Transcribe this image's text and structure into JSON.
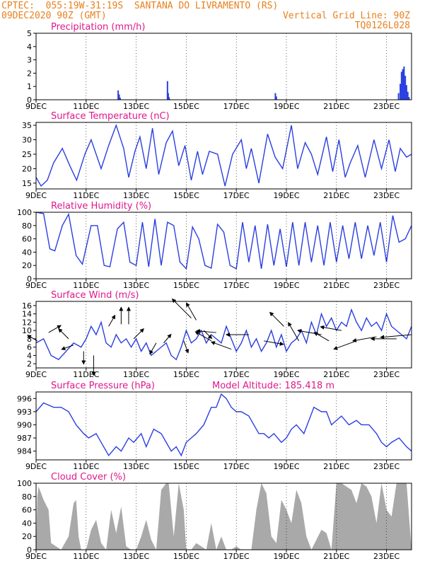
{
  "header": {
    "line1_left": "CPTEC:  055:19W-31:19S  SANTANA DO LIVRAMENTO (RS)",
    "line2_left": "09DEC2020 90Z (GMT)",
    "line2_right": "Vertical Grid Line: 90Z",
    "line3_right": "TQ0126L028"
  },
  "colors": {
    "header": "#e8801e",
    "title": "#e0188c",
    "line": "#2a3fe0",
    "cloud": "#a9a9a9",
    "axis": "#000000",
    "grid": "#000000"
  },
  "x_axis": {
    "tick_labels": [
      "9DEC",
      "11DEC",
      "13DEC",
      "15DEC",
      "17DEC",
      "19DEC",
      "21DEC",
      "23DEC"
    ],
    "tick_days": [
      9,
      11,
      13,
      15,
      17,
      19,
      21,
      23
    ],
    "range_days": [
      9.0,
      24.0
    ]
  },
  "chart_data": [
    {
      "type": "bar",
      "title": "Precipitation (mm/h)",
      "ylim": [
        0,
        5
      ],
      "yticks": [
        0,
        1,
        2,
        3,
        4,
        5
      ],
      "x_days": [
        12.28,
        12.32,
        12.36,
        14.25,
        14.28,
        14.31,
        14.34,
        18.56,
        18.6,
        23.48,
        23.55,
        23.6,
        23.65,
        23.7,
        23.75,
        23.8,
        23.85,
        23.9
      ],
      "values": [
        0.7,
        0.4,
        0.15,
        1.4,
        0.5,
        0.2,
        0.05,
        0.5,
        0.25,
        0.5,
        1.2,
        2.1,
        2.3,
        2.5,
        1.8,
        1.1,
        0.6,
        0.2
      ]
    },
    {
      "type": "line",
      "title": "Surface Temperature (nC)",
      "ylim": [
        13,
        36
      ],
      "yticks": [
        15,
        20,
        25,
        30,
        35
      ],
      "x_days": [
        9,
        9.2,
        9.45,
        9.7,
        10.05,
        10.35,
        10.62,
        10.95,
        11.2,
        11.6,
        11.9,
        12.2,
        12.5,
        12.7,
        12.95,
        13.15,
        13.4,
        13.65,
        13.9,
        14.2,
        14.45,
        14.7,
        14.95,
        15.2,
        15.45,
        15.65,
        15.92,
        16.25,
        16.55,
        16.85,
        17.2,
        17.4,
        17.6,
        17.9,
        18.25,
        18.55,
        18.85,
        19.2,
        19.45,
        19.75,
        20.0,
        20.25,
        20.6,
        20.85,
        21.1,
        21.35,
        21.55,
        21.85,
        22.15,
        22.5,
        22.8,
        23.1,
        23.35,
        23.55,
        23.8,
        24.0
      ],
      "values": [
        17,
        14,
        16,
        22,
        27,
        21,
        16,
        25,
        30,
        20,
        28,
        35,
        27,
        17,
        26,
        31,
        20,
        34,
        18,
        29,
        33,
        21,
        28,
        16,
        26,
        18,
        26,
        25,
        14,
        25,
        30,
        20,
        27,
        15,
        32,
        24,
        20,
        35,
        20,
        29,
        25,
        18,
        31,
        19,
        30,
        17,
        22,
        28,
        17,
        30,
        20,
        30,
        19,
        27,
        24,
        25
      ]
    },
    {
      "type": "line",
      "title": "Relative Humidity (%)",
      "ylim": [
        0,
        100
      ],
      "yticks": [
        0,
        20,
        40,
        60,
        80,
        100
      ],
      "x_days": [
        9,
        9.3,
        9.55,
        9.75,
        10.05,
        10.3,
        10.6,
        10.85,
        11.2,
        11.45,
        11.72,
        11.95,
        12.25,
        12.5,
        12.75,
        13.0,
        13.25,
        13.5,
        13.75,
        14.0,
        14.25,
        14.5,
        14.75,
        15.0,
        15.25,
        15.5,
        15.75,
        16.0,
        16.25,
        16.5,
        16.75,
        17.0,
        17.25,
        17.5,
        17.75,
        18.0,
        18.25,
        18.5,
        18.75,
        19.0,
        19.25,
        19.5,
        19.75,
        20.0,
        20.25,
        20.5,
        20.75,
        21.0,
        21.25,
        21.5,
        21.75,
        22.0,
        22.25,
        22.5,
        22.75,
        23.0,
        23.25,
        23.5,
        23.75,
        24.0
      ],
      "values": [
        100,
        98,
        45,
        42,
        80,
        97,
        35,
        22,
        80,
        80,
        20,
        18,
        75,
        85,
        25,
        20,
        85,
        18,
        90,
        20,
        85,
        80,
        25,
        15,
        78,
        60,
        20,
        16,
        82,
        70,
        20,
        15,
        85,
        25,
        80,
        15,
        82,
        20,
        75,
        18,
        85,
        20,
        85,
        25,
        80,
        20,
        85,
        25,
        80,
        30,
        85,
        30,
        80,
        35,
        85,
        25,
        95,
        55,
        60,
        80
      ]
    },
    {
      "type": "line",
      "title": "Surface Wind (m/s)",
      "ylim": [
        1,
        17
      ],
      "yticks": [
        2,
        4,
        6,
        8,
        10,
        12,
        14,
        16
      ],
      "x_days": [
        9,
        9.3,
        9.6,
        9.9,
        10.2,
        10.5,
        10.8,
        11.0,
        11.2,
        11.4,
        11.6,
        11.8,
        12.0,
        12.2,
        12.4,
        12.6,
        12.8,
        13.0,
        13.2,
        13.4,
        13.6,
        13.8,
        14.0,
        14.2,
        14.4,
        14.6,
        14.8,
        15.0,
        15.2,
        15.4,
        15.6,
        15.8,
        16.0,
        16.2,
        16.4,
        16.6,
        16.8,
        17.0,
        17.2,
        17.4,
        17.6,
        17.8,
        18.0,
        18.2,
        18.4,
        18.6,
        18.8,
        19.0,
        19.2,
        19.4,
        19.6,
        19.8,
        20.0,
        20.2,
        20.4,
        20.6,
        20.8,
        21.0,
        21.2,
        21.4,
        21.6,
        21.8,
        22.0,
        22.2,
        22.4,
        22.6,
        22.8,
        23.0,
        23.2,
        23.4,
        23.6,
        23.8,
        24.0
      ],
      "values": [
        7,
        8,
        4,
        3,
        5,
        7,
        6,
        8,
        11,
        9,
        12,
        7,
        6,
        9,
        7,
        8,
        6,
        8,
        5,
        7,
        4,
        5,
        6,
        7,
        4,
        3,
        6,
        10,
        7,
        8,
        10,
        7,
        9,
        8,
        7,
        11,
        8,
        5,
        7,
        10,
        6,
        8,
        5,
        7,
        10,
        6,
        9,
        5,
        7,
        8,
        10,
        7,
        12,
        9,
        14,
        11,
        13,
        10,
        12,
        11,
        15,
        12,
        10,
        13,
        11,
        12,
        10,
        14,
        11,
        10,
        9,
        8,
        11
      ]
    },
    {
      "type": "line",
      "title": "Surface Pressure (hPa)",
      "subtitle": "Model Altitude: 185.418  m",
      "ylim": [
        982,
        997.5
      ],
      "yticks": [
        984,
        987,
        990,
        993,
        996
      ],
      "x_days": [
        9,
        9.3,
        9.7,
        10.0,
        10.3,
        10.6,
        10.9,
        11.1,
        11.4,
        11.7,
        11.9,
        12.2,
        12.4,
        12.7,
        12.9,
        13.2,
        13.4,
        13.7,
        14.0,
        14.2,
        14.4,
        14.6,
        14.8,
        15.0,
        15.2,
        15.4,
        15.7,
        16.0,
        16.2,
        16.4,
        16.6,
        16.8,
        17.0,
        17.2,
        17.5,
        17.7,
        17.9,
        18.1,
        18.3,
        18.5,
        18.8,
        19.0,
        19.2,
        19.4,
        19.7,
        19.9,
        20.1,
        20.4,
        20.6,
        20.8,
        21.0,
        21.2,
        21.5,
        21.8,
        22.0,
        22.3,
        22.6,
        22.8,
        23.0,
        23.2,
        23.5,
        23.8,
        24.0
      ],
      "values": [
        993,
        995,
        994,
        994,
        993,
        990,
        988,
        987,
        988,
        985,
        983,
        985,
        984,
        987,
        986,
        988,
        985,
        989,
        988,
        986,
        984,
        985,
        983,
        986,
        987,
        988,
        990,
        994,
        994,
        997,
        996,
        994,
        993,
        993,
        992,
        990,
        988,
        988,
        987,
        988,
        986,
        987,
        989,
        990,
        988,
        991,
        994,
        993,
        993,
        990,
        991,
        992,
        990,
        991,
        990,
        990,
        988,
        986,
        985,
        986,
        987,
        985,
        984
      ]
    },
    {
      "type": "area",
      "title": "Cloud Cover (%)",
      "ylim": [
        0,
        100
      ],
      "yticks": [
        0,
        20,
        40,
        60,
        80,
        100
      ],
      "x_days": [
        9,
        9.05,
        9.1,
        9.3,
        9.5,
        9.6,
        10.0,
        10.3,
        10.5,
        10.6,
        10.7,
        10.8,
        11.0,
        11.2,
        11.4,
        11.6,
        11.8,
        12.0,
        12.2,
        12.4,
        12.6,
        12.8,
        13.0,
        13.2,
        13.4,
        13.6,
        13.8,
        14.0,
        14.2,
        14.3,
        14.5,
        14.7,
        14.9,
        15.0,
        15.2,
        15.4,
        15.6,
        15.8,
        16.0,
        16.2,
        16.4,
        16.6,
        16.8,
        17.0,
        17.2,
        17.4,
        17.6,
        17.8,
        18.0,
        18.2,
        18.4,
        18.6,
        18.8,
        19.0,
        19.2,
        19.4,
        19.6,
        19.8,
        20.0,
        20.2,
        20.4,
        20.6,
        20.8,
        21.0,
        21.2,
        21.4,
        21.6,
        21.8,
        22.0,
        22.2,
        22.4,
        22.6,
        22.8,
        23.0,
        23.2,
        23.4,
        23.6,
        23.8,
        24.0
      ],
      "values": [
        0,
        80,
        95,
        75,
        60,
        10,
        0,
        20,
        70,
        75,
        20,
        0,
        0,
        30,
        45,
        10,
        0,
        60,
        25,
        65,
        5,
        0,
        0,
        20,
        45,
        15,
        0,
        90,
        100,
        100,
        20,
        100,
        60,
        0,
        0,
        10,
        5,
        0,
        40,
        0,
        20,
        0,
        0,
        5,
        0,
        0,
        0,
        60,
        100,
        85,
        20,
        10,
        75,
        60,
        40,
        90,
        70,
        20,
        0,
        15,
        30,
        25,
        0,
        100,
        100,
        95,
        90,
        70,
        100,
        95,
        80,
        40,
        100,
        60,
        50,
        100,
        100,
        100,
        0
      ]
    }
  ],
  "wind_arrows": {
    "note": "",
    "items": [
      {
        "x": 9.05,
        "v": 7.5,
        "ang": 150,
        "len": 16
      },
      {
        "x": 9.5,
        "v": 9.5,
        "ang": 30,
        "len": 20
      },
      {
        "x": 10.3,
        "v": 8.0,
        "ang": 135,
        "len": 20
      },
      {
        "x": 10.5,
        "v": 6.5,
        "ang": 200,
        "len": 18
      },
      {
        "x": 10.9,
        "v": 5.0,
        "ang": 270,
        "len": 18
      },
      {
        "x": 11.3,
        "v": 4.0,
        "ang": 270,
        "len": 28
      },
      {
        "x": 11.9,
        "v": 11.0,
        "ang": 60,
        "len": 18
      },
      {
        "x": 12.4,
        "v": 11.5,
        "ang": 90,
        "len": 24
      },
      {
        "x": 12.7,
        "v": 11.5,
        "ang": 90,
        "len": 24
      },
      {
        "x": 12.9,
        "v": 8.0,
        "ang": 45,
        "len": 20
      },
      {
        "x": 13.8,
        "v": 7.0,
        "ang": 240,
        "len": 18
      },
      {
        "x": 14.1,
        "v": 7.0,
        "ang": 50,
        "len": 16
      },
      {
        "x": 14.9,
        "v": 7.5,
        "ang": 290,
        "len": 18
      },
      {
        "x": 15.2,
        "v": 13.0,
        "ang": 135,
        "len": 38
      },
      {
        "x": 15.4,
        "v": 12.5,
        "ang": 120,
        "len": 28
      },
      {
        "x": 15.7,
        "v": 10.0,
        "ang": 315,
        "len": 16
      },
      {
        "x": 16.0,
        "v": 7.5,
        "ang": 150,
        "len": 26
      },
      {
        "x": 16.2,
        "v": 9.5,
        "ang": 175,
        "len": 28
      },
      {
        "x": 16.8,
        "v": 5.5,
        "ang": 160,
        "len": 30
      },
      {
        "x": 17.5,
        "v": 9.0,
        "ang": 180,
        "len": 32
      },
      {
        "x": 18.1,
        "v": 7.5,
        "ang": 350,
        "len": 28
      },
      {
        "x": 18.9,
        "v": 11.0,
        "ang": 135,
        "len": 28
      },
      {
        "x": 19.5,
        "v": 7.5,
        "ang": 120,
        "len": 30
      },
      {
        "x": 20.4,
        "v": 9.0,
        "ang": 170,
        "len": 34
      },
      {
        "x": 20.7,
        "v": 7.5,
        "ang": 150,
        "len": 24
      },
      {
        "x": 21.2,
        "v": 10.0,
        "ang": 170,
        "len": 30
      },
      {
        "x": 21.8,
        "v": 7.5,
        "ang": 200,
        "len": 34
      },
      {
        "x": 22.6,
        "v": 8.5,
        "ang": 190,
        "len": 34
      },
      {
        "x": 23.4,
        "v": 8.0,
        "ang": 180,
        "len": 36
      },
      {
        "x": 24.0,
        "v": 9.0,
        "ang": 185,
        "len": 44
      }
    ]
  }
}
